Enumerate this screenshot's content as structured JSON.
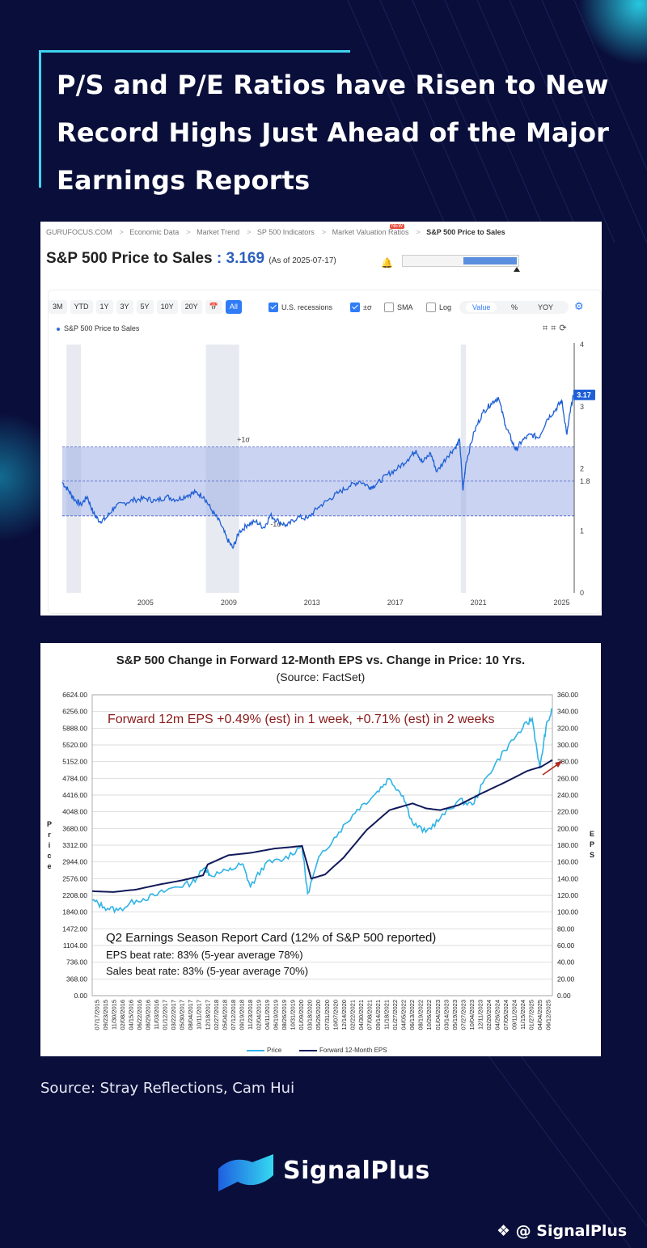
{
  "headline": {
    "line1": "P/S and P/E Ratios have Risen to New",
    "line2": "Record Highs Just Ahead of the Major",
    "line3": "Earnings Reports"
  },
  "ps_panel": {
    "breadcrumbs": [
      "GURUFOCUS.COM",
      "Economic Data",
      "Market Trend",
      "SP 500 Indicators",
      "Market Valuation Ratios",
      "S&P 500 Price to Sales"
    ],
    "new_badge": "NEW",
    "title_label": "S&P 500 Price to Sales",
    "title_sep": " : ",
    "title_value": "3.169",
    "as_of": "(As of 2025-07-17)",
    "gauge_level": 0.53,
    "period_buttons": [
      "3M",
      "YTD",
      "1Y",
      "3Y",
      "5Y",
      "10Y",
      "20Y",
      "📅",
      "All"
    ],
    "active_period": "All",
    "checkboxes": {
      "recessions": "U.S. recessions",
      "sigma": "±σ",
      "sma": "SMA",
      "log": "Log"
    },
    "segments": [
      "Value",
      "%",
      "YOY"
    ],
    "active_segment": "Value",
    "legend": "S&P 500 Price to Sales",
    "icons": [
      "gear-icon",
      "crop-icon",
      "crop-icon",
      "refresh-icon"
    ]
  },
  "eps_panel": {
    "title": "S&P 500 Change in Forward 12-Month EPS vs. Change in Price: 10 Yrs.",
    "subtitle": "(Source: FactSet)",
    "annotation": "Forward 12m EPS +0.49% (est) in 1 week, +0.71% (est) in 2 weeks",
    "report_card_title": "Q2 Earnings Season Report Card (12% of S&P 500 reported)",
    "eps_beat": "EPS beat rate: 83% (5-year average 78%)",
    "sales_beat": "Sales beat rate: 83% (5-year average 70%)",
    "left_axis_title": "Price",
    "right_axis_title": "EPS",
    "legend_price": "Price",
    "legend_eps": "Forward 12-Month EPS"
  },
  "chart_data": [
    {
      "type": "line",
      "title": "S&P 500 Price to Sales",
      "xlabel": "",
      "ylabel": "",
      "x_ticks": [
        "2005",
        "2009",
        "2013",
        "2017",
        "2021",
        "2025"
      ],
      "y_ticks": [
        "0",
        "1",
        "1.8",
        "2",
        "3",
        "4"
      ],
      "xlim": [
        2001,
        2025.6
      ],
      "ylim": [
        0,
        4
      ],
      "mean": 1.8,
      "plus_sigma": 2.35,
      "minus_sigma": 1.24,
      "plus_sigma_label": "+1σ",
      "minus_sigma_label": "-1σ",
      "last_value_label": "3.17",
      "recessions": [
        [
          2001.2,
          2001.9
        ],
        [
          2007.9,
          2009.5
        ],
        [
          2020.15,
          2020.4
        ]
      ],
      "series": [
        {
          "x": [
            2001.0,
            2001.3,
            2001.6,
            2001.9,
            2002.2,
            2002.5,
            2002.8,
            2003.1,
            2003.5,
            2004.0,
            2004.5,
            2005.0,
            2005.5,
            2006.0,
            2006.5,
            2007.0,
            2007.4,
            2007.8,
            2008.2,
            2008.6,
            2008.9,
            2009.2,
            2009.5,
            2009.9,
            2010.3,
            2010.7,
            2011.0,
            2011.4,
            2011.8,
            2012.3,
            2012.8,
            2013.3,
            2013.8,
            2014.3,
            2014.8,
            2015.3,
            2015.8,
            2016.1,
            2016.6,
            2017.1,
            2017.6,
            2018.0,
            2018.3,
            2018.7,
            2019.0,
            2019.5,
            2019.9,
            2020.1,
            2020.25,
            2020.4,
            2020.8,
            2021.2,
            2021.6,
            2021.95,
            2022.3,
            2022.6,
            2022.8,
            2023.1,
            2023.5,
            2023.9,
            2024.3,
            2024.7,
            2025.0,
            2025.25,
            2025.4,
            2025.55
          ],
          "values": [
            1.78,
            1.65,
            1.5,
            1.42,
            1.55,
            1.28,
            1.15,
            1.2,
            1.38,
            1.45,
            1.5,
            1.52,
            1.48,
            1.55,
            1.5,
            1.57,
            1.62,
            1.55,
            1.32,
            1.12,
            0.88,
            0.72,
            0.98,
            1.1,
            1.15,
            1.05,
            1.25,
            1.15,
            1.08,
            1.22,
            1.2,
            1.38,
            1.5,
            1.62,
            1.72,
            1.8,
            1.7,
            1.75,
            1.9,
            2.0,
            2.15,
            2.3,
            2.1,
            2.25,
            1.95,
            2.2,
            2.35,
            2.45,
            1.65,
            2.1,
            2.6,
            2.9,
            3.05,
            3.15,
            2.7,
            2.45,
            2.3,
            2.45,
            2.55,
            2.5,
            2.8,
            2.95,
            3.1,
            2.55,
            2.9,
            3.17
          ]
        }
      ]
    },
    {
      "type": "line",
      "title": "S&P 500 Change in Forward 12-Month EPS vs. Change in Price: 10 Yrs.",
      "xlabel": "",
      "ylabel": "Price",
      "y2label": "EPS",
      "ylim": [
        0,
        6624
      ],
      "y2lim": [
        0,
        360
      ],
      "y_ticks": [
        "0.00",
        "368.00",
        "736.00",
        "1104.00",
        "1472.00",
        "1840.00",
        "2208.00",
        "2576.00",
        "2944.00",
        "3312.00",
        "3680.00",
        "4048.00",
        "4416.00",
        "4784.00",
        "5152.00",
        "5520.00",
        "5888.00",
        "6256.00",
        "6624.00"
      ],
      "y2_ticks": [
        "0.00",
        "20.00",
        "40.00",
        "60.00",
        "80.00",
        "100.00",
        "120.00",
        "140.00",
        "160.00",
        "180.00",
        "200.00",
        "220.00",
        "240.00",
        "260.00",
        "280.00",
        "300.00",
        "320.00",
        "340.00",
        "360.00"
      ],
      "x_ticks": [
        "07/17/2015",
        "09/23/2015",
        "11/30/2015",
        "02/08/2016",
        "04/15/2016",
        "06/22/2016",
        "08/29/2016",
        "11/03/2016",
        "01/12/2017",
        "03/22/2017",
        "05/30/2017",
        "08/04/2017",
        "10/11/2017",
        "12/18/2017",
        "02/27/2018",
        "05/04/2018",
        "07/12/2018",
        "09/19/2018",
        "11/23/2018",
        "02/04/2019",
        "04/11/2019",
        "06/19/2019",
        "08/26/2019",
        "10/31/2019",
        "01/09/2020",
        "03/18/2020",
        "05/26/2020",
        "07/31/2020",
        "10/07/2020",
        "12/14/2020",
        "02/22/2021",
        "04/30/2021",
        "07/08/2021",
        "09/14/2021",
        "11/18/2021",
        "01/27/2022",
        "04/05/2022",
        "06/13/2022",
        "08/19/2022",
        "10/26/2022",
        "01/04/2023",
        "03/14/2023",
        "05/19/2023",
        "07/27/2023",
        "10/04/2023",
        "12/11/2023",
        "02/20/2024",
        "04/26/2024",
        "07/05/2024",
        "09/11/2024",
        "11/15/2024",
        "01/27/2025",
        "04/04/2025",
        "06/12/2025"
      ],
      "series": [
        {
          "name": "Price",
          "x": [
            2015.54,
            2015.8,
            2016.1,
            2016.5,
            2016.9,
            2017.3,
            2017.7,
            2018.0,
            2018.1,
            2018.5,
            2018.8,
            2018.98,
            2019.3,
            2019.7,
            2020.1,
            2020.22,
            2020.5,
            2020.9,
            2021.3,
            2021.7,
            2021.99,
            2022.3,
            2022.5,
            2022.79,
            2023.1,
            2023.5,
            2023.8,
            2024.1,
            2024.5,
            2024.9,
            2025.1,
            2025.27,
            2025.4,
            2025.54
          ],
          "values": [
            2100,
            1950,
            1880,
            2100,
            2200,
            2380,
            2480,
            2820,
            2650,
            2750,
            2900,
            2400,
            2900,
            3000,
            3300,
            2250,
            3100,
            3600,
            4100,
            4450,
            4780,
            4400,
            3800,
            3600,
            3900,
            4300,
            4200,
            4800,
            5400,
            5900,
            6100,
            5000,
            5900,
            6300
          ]
        },
        {
          "name": "Forward 12-Month EPS",
          "x": [
            2015.54,
            2016.0,
            2016.5,
            2017.0,
            2017.5,
            2017.95,
            2018.05,
            2018.5,
            2019.0,
            2019.5,
            2020.1,
            2020.3,
            2020.6,
            2021.0,
            2021.5,
            2022.0,
            2022.5,
            2022.8,
            2023.1,
            2023.5,
            2024.0,
            2024.5,
            2025.0,
            2025.3,
            2025.54
          ],
          "values": [
            125,
            124,
            127,
            133,
            138,
            144,
            157,
            168,
            171,
            176,
            179,
            140,
            145,
            165,
            198,
            222,
            230,
            224,
            222,
            228,
            242,
            255,
            269,
            274,
            282
          ]
        }
      ]
    }
  ],
  "footer": {
    "source": "Source: Stray Reflections, Cam Hui",
    "brand": "SignalPlus",
    "handle": "@ SignalPlus"
  }
}
